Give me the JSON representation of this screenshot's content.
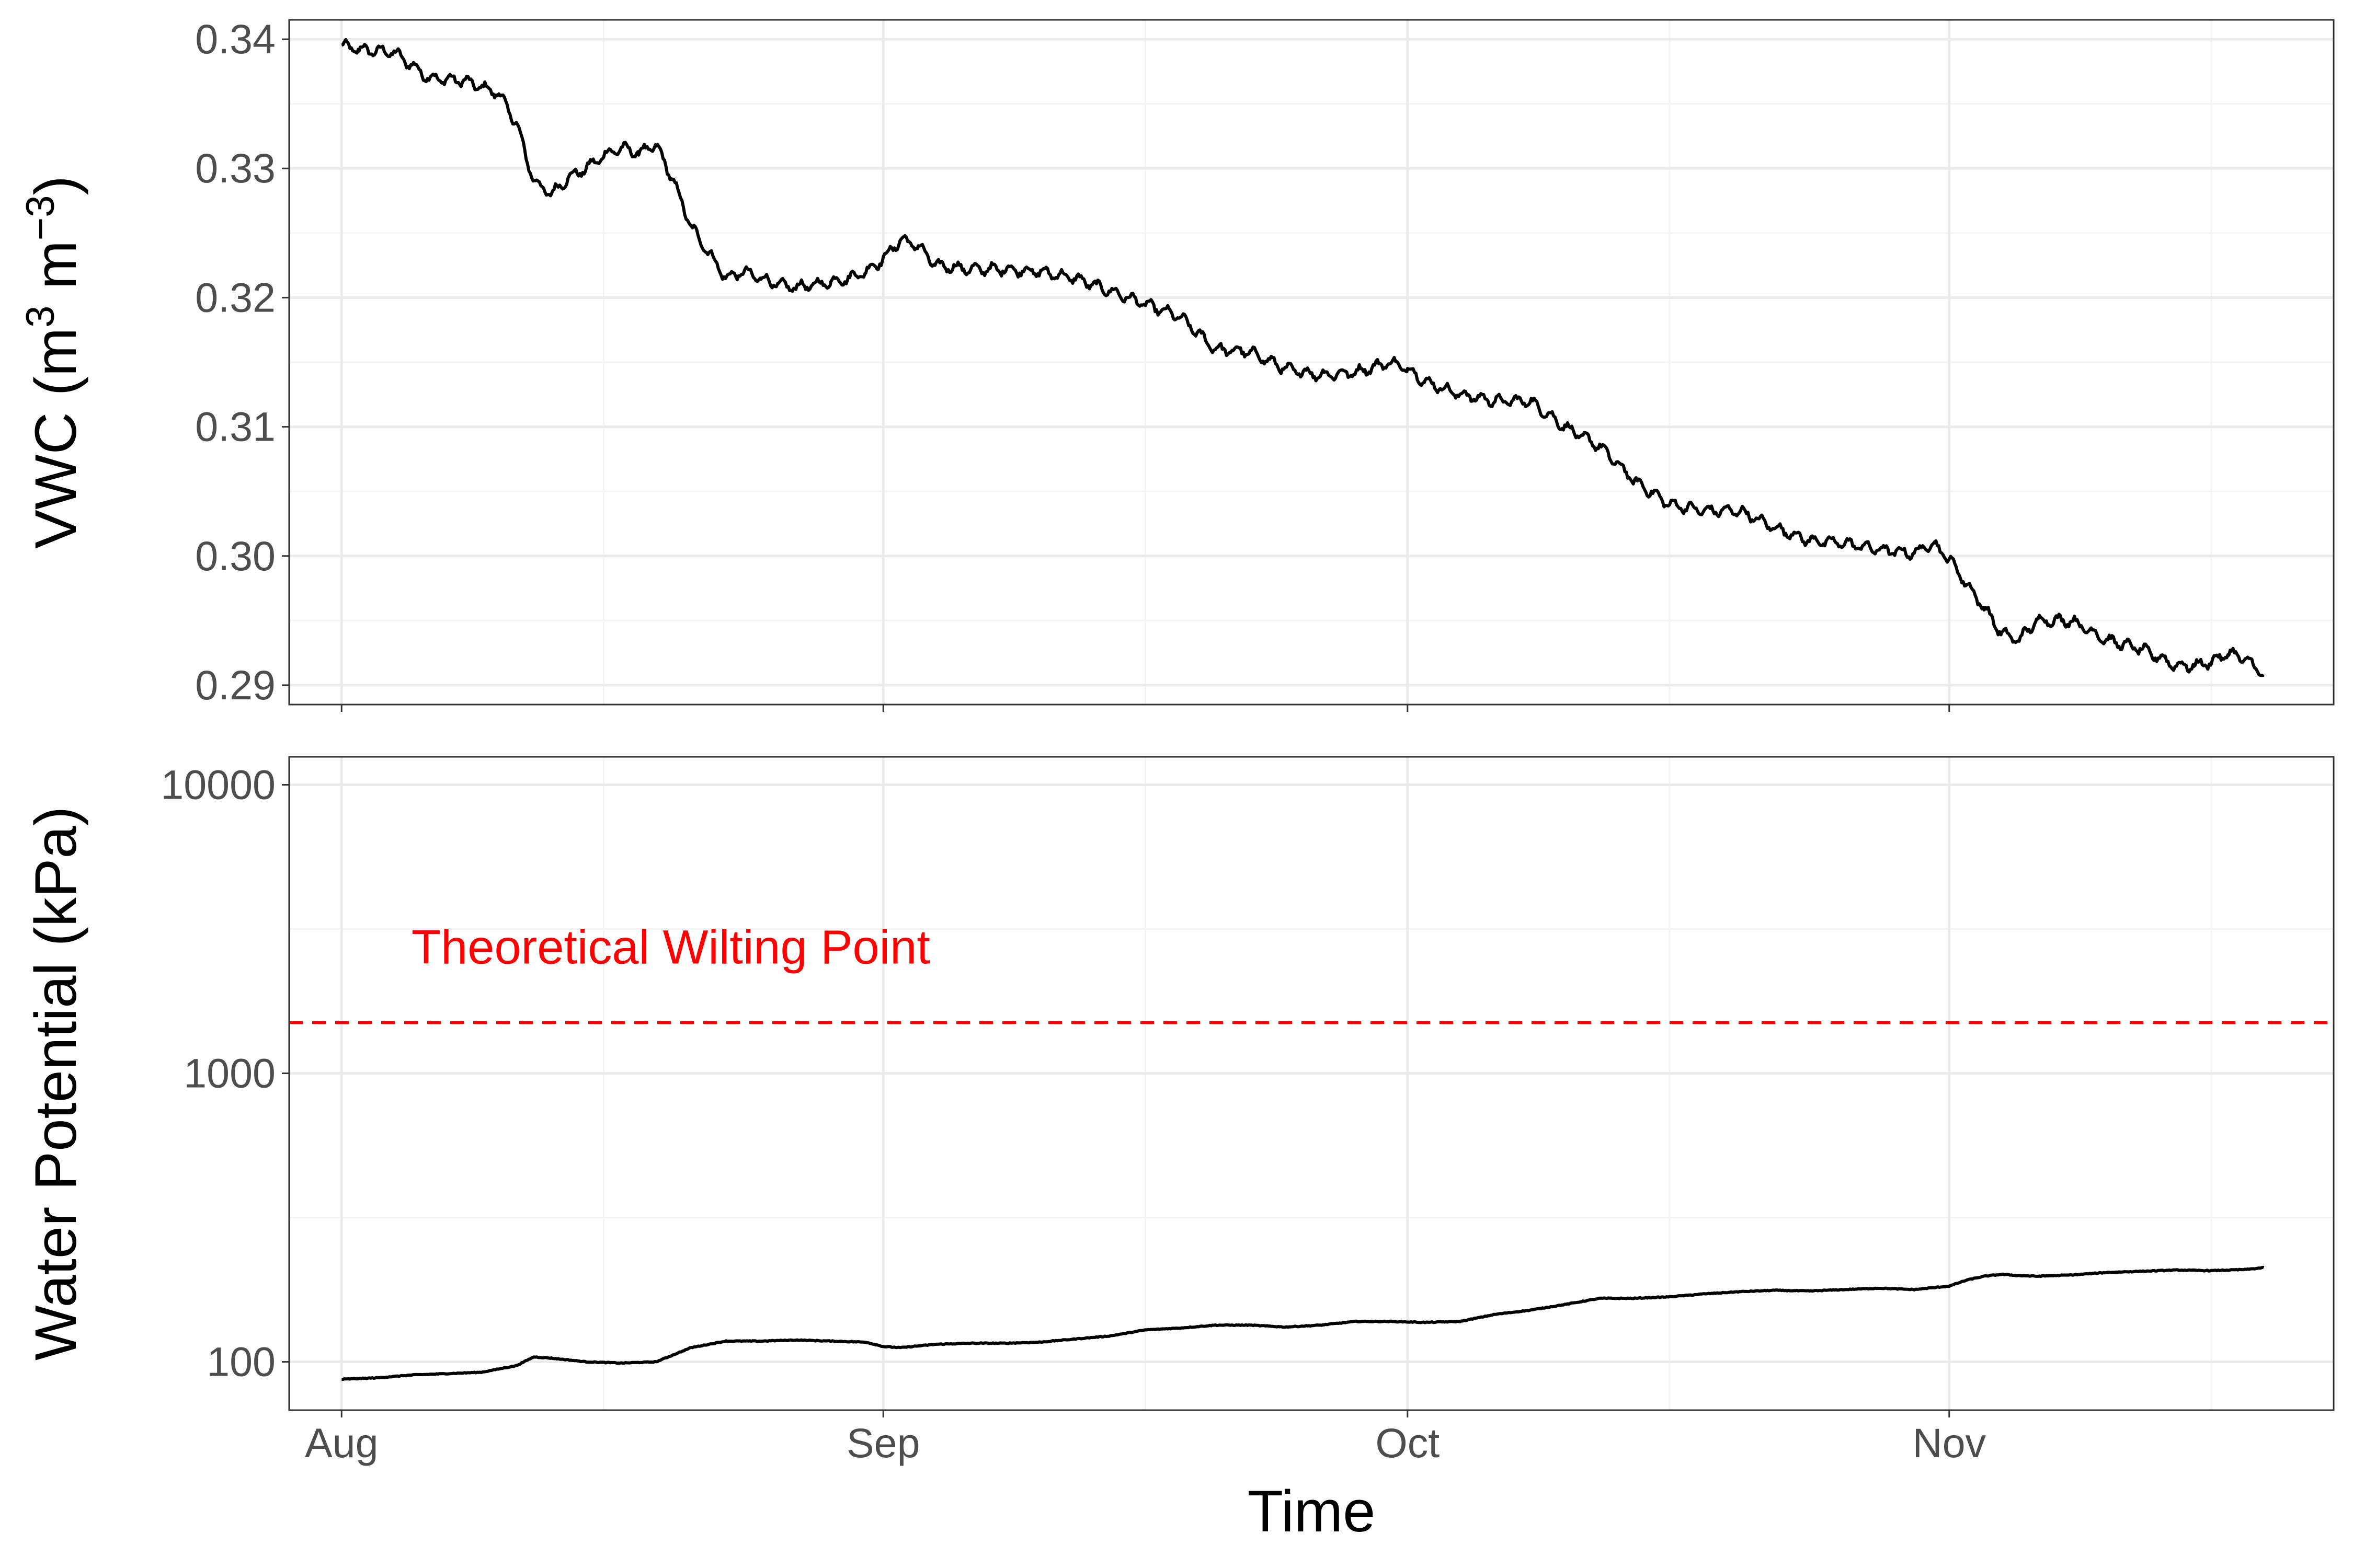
{
  "colors": {
    "background": "#ffffff",
    "panel_border": "#333333",
    "grid_major": "#ebebeb",
    "grid_minor": "#f4f4f4",
    "series": "#000000",
    "reference": "#ff0000",
    "tick_text": "#4d4d4d"
  },
  "chart_data": [
    {
      "type": "line",
      "ylabel": "VWC (m³ m⁻³)",
      "ylabel_parts": {
        "pre": "VWC (m",
        "sup1": "3",
        "mid": " m",
        "sup2": "−3",
        "post": ")"
      },
      "xlabel": "",
      "x_axis": {
        "type": "date",
        "range": [
          "2023-07-29",
          "2023-11-23"
        ],
        "show_tick_labels": false
      },
      "ylim": [
        0.2885,
        0.3415
      ],
      "y_ticks": [
        0.29,
        0.3,
        0.31,
        0.32,
        0.33,
        0.34
      ],
      "y_tick_labels": [
        "0.29",
        "0.30",
        "0.31",
        "0.32",
        "0.33",
        "0.34"
      ],
      "grid": true,
      "series": [
        {
          "x": [
            "2023-08-01",
            "2023-08-02",
            "2023-08-04",
            "2023-08-06",
            "2023-08-08",
            "2023-08-10",
            "2023-08-11",
            "2023-08-12",
            "2023-08-13",
            "2023-08-14",
            "2023-08-15",
            "2023-08-16",
            "2023-08-17",
            "2023-08-18",
            "2023-08-19",
            "2023-08-20",
            "2023-08-21",
            "2023-08-22",
            "2023-08-23",
            "2023-08-24",
            "2023-08-25",
            "2023-08-26",
            "2023-08-27",
            "2023-08-28",
            "2023-08-29",
            "2023-08-30",
            "2023-08-31",
            "2023-09-01",
            "2023-09-02",
            "2023-09-03",
            "2023-09-04",
            "2023-09-06",
            "2023-09-08",
            "2023-09-10",
            "2023-09-12",
            "2023-09-14",
            "2023-09-16",
            "2023-09-18",
            "2023-09-20",
            "2023-09-22",
            "2023-09-24",
            "2023-09-26",
            "2023-09-28",
            "2023-09-30",
            "2023-10-01",
            "2023-10-02",
            "2023-10-04",
            "2023-10-06",
            "2023-10-08",
            "2023-10-10",
            "2023-10-12",
            "2023-10-14",
            "2023-10-16",
            "2023-10-18",
            "2023-10-20",
            "2023-10-22",
            "2023-10-24",
            "2023-10-26",
            "2023-10-28",
            "2023-10-30",
            "2023-10-31",
            "2023-11-01",
            "2023-11-02",
            "2023-11-03",
            "2023-11-04",
            "2023-11-05",
            "2023-11-06",
            "2023-11-08",
            "2023-11-10",
            "2023-11-12",
            "2023-11-14",
            "2023-11-15",
            "2023-11-16",
            "2023-11-17",
            "2023-11-18",
            "2023-11-19"
          ],
          "values": [
            0.3395,
            0.3392,
            0.339,
            0.337,
            0.3368,
            0.3358,
            0.3335,
            0.329,
            0.328,
            0.3293,
            0.33,
            0.331,
            0.3316,
            0.3312,
            0.3318,
            0.329,
            0.3255,
            0.3235,
            0.3215,
            0.322,
            0.3215,
            0.321,
            0.3208,
            0.321,
            0.3212,
            0.3215,
            0.322,
            0.323,
            0.3245,
            0.324,
            0.3225,
            0.3222,
            0.3222,
            0.322,
            0.3215,
            0.3205,
            0.3195,
            0.3185,
            0.316,
            0.3158,
            0.3145,
            0.314,
            0.3142,
            0.315,
            0.3145,
            0.3135,
            0.3125,
            0.312,
            0.312,
            0.31,
            0.3085,
            0.3058,
            0.304,
            0.3035,
            0.3035,
            0.3022,
            0.3012,
            0.301,
            0.3005,
            0.3002,
            0.301,
            0.2998,
            0.2978,
            0.296,
            0.294,
            0.2935,
            0.295,
            0.295,
            0.2935,
            0.2928,
            0.2915,
            0.2915,
            0.2918,
            0.2925,
            0.292,
            0.2908
          ],
          "style": "solid",
          "noise": 0.00045
        }
      ]
    },
    {
      "type": "line",
      "ylabel": "Water Potential (kPa)",
      "xlabel": "Time",
      "x_axis": {
        "type": "date",
        "range": [
          "2023-07-29",
          "2023-11-23"
        ],
        "ticks": [
          "2023-08-01",
          "2023-09-01",
          "2023-10-01",
          "2023-11-01"
        ],
        "tick_labels": [
          "Aug",
          "Sep",
          "Oct",
          "Nov"
        ],
        "minor_ticks": [
          "2023-08-16",
          "2023-09-16",
          "2023-10-16",
          "2023-11-16"
        ]
      },
      "y_scale": "log",
      "ylim": [
        68,
        12500
      ],
      "y_ticks": [
        100,
        1000,
        10000
      ],
      "y_tick_labels": [
        "100",
        "1000",
        "10000"
      ],
      "y_minor_ticks": [
        316.23,
        3162.3
      ],
      "grid": true,
      "reference_line": {
        "value": 1500,
        "style": "dashed",
        "label": "Theoretical Wilting Point",
        "label_x": "2023-08-05",
        "label_y": 2400
      },
      "series": [
        {
          "x": [
            "2023-08-01",
            "2023-08-03",
            "2023-08-05",
            "2023-08-07",
            "2023-08-09",
            "2023-08-11",
            "2023-08-12",
            "2023-08-13",
            "2023-08-15",
            "2023-08-17",
            "2023-08-19",
            "2023-08-21",
            "2023-08-23",
            "2023-08-25",
            "2023-08-27",
            "2023-08-29",
            "2023-08-31",
            "2023-09-01",
            "2023-09-02",
            "2023-09-04",
            "2023-09-06",
            "2023-09-08",
            "2023-09-10",
            "2023-09-12",
            "2023-09-14",
            "2023-09-16",
            "2023-09-18",
            "2023-09-20",
            "2023-09-22",
            "2023-09-24",
            "2023-09-26",
            "2023-09-28",
            "2023-09-30",
            "2023-10-02",
            "2023-10-04",
            "2023-10-06",
            "2023-10-08",
            "2023-10-10",
            "2023-10-12",
            "2023-10-14",
            "2023-10-16",
            "2023-10-18",
            "2023-10-20",
            "2023-10-22",
            "2023-10-24",
            "2023-10-26",
            "2023-10-28",
            "2023-10-30",
            "2023-11-01",
            "2023-11-02",
            "2023-11-03",
            "2023-11-04",
            "2023-11-05",
            "2023-11-06",
            "2023-11-08",
            "2023-11-10",
            "2023-11-12",
            "2023-11-14",
            "2023-11-16",
            "2023-11-18",
            "2023-11-19"
          ],
          "values": [
            87,
            88,
            90,
            91,
            92,
            97,
            104,
            103,
            100,
            99,
            100,
            112,
            118,
            118,
            119,
            118,
            117,
            113,
            112,
            115,
            116,
            116,
            117,
            120,
            123,
            129,
            131,
            134,
            134,
            132,
            134,
            138,
            138,
            137,
            138,
            146,
            151,
            158,
            166,
            166,
            168,
            172,
            175,
            177,
            176,
            178,
            180,
            178,
            183,
            192,
            198,
            201,
            199,
            198,
            200,
            204,
            206,
            208,
            207,
            209,
            212
          ],
          "style": "solid",
          "noise": 0.0025
        }
      ]
    }
  ]
}
